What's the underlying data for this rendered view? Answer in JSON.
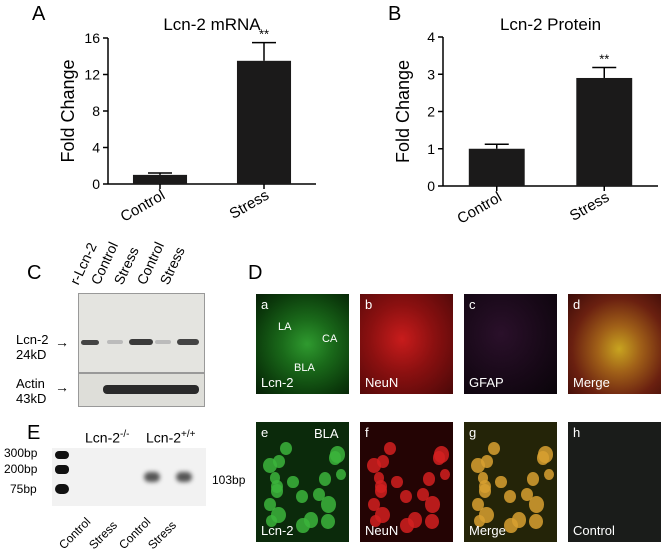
{
  "panels": {
    "A": "A",
    "B": "B",
    "C": "C",
    "D": "D",
    "E": "E"
  },
  "chart_data": [
    {
      "type": "bar",
      "title": "Lcn-2 mRNA",
      "categories": [
        "Control",
        "Stress"
      ],
      "values": [
        1.0,
        13.5
      ],
      "errors": [
        0.2,
        2.0
      ],
      "significance": [
        "",
        "**"
      ],
      "ylabel": "Fold Change",
      "ylim": [
        0,
        16
      ],
      "yticks": [
        "0",
        "4",
        "8",
        "12",
        "16"
      ],
      "bar_color": "#1b1a1a"
    },
    {
      "type": "bar",
      "title": "Lcn-2 Protein",
      "categories": [
        "Control",
        "Stress"
      ],
      "values": [
        1.0,
        2.9
      ],
      "errors": [
        0.12,
        0.28
      ],
      "significance": [
        "",
        "**"
      ],
      "ylabel": "Fold Change",
      "ylim": [
        0,
        4
      ],
      "yticks": [
        "0",
        "1",
        "2",
        "3",
        "4"
      ],
      "bar_color": "#1b1a1a"
    }
  ],
  "western": {
    "lanes": [
      "r-Lcn-2",
      "Control",
      "Stress",
      "Control",
      "Stress"
    ],
    "lcn2_label_line1": "Lcn-2",
    "lcn2_label_line2": "24kD",
    "actin_label_line1": "Actin",
    "actin_label_line2": "43kD"
  },
  "pcr": {
    "group1": "Lcn-2",
    "group1_sup": "-/-",
    "group2": "Lcn-2",
    "group2_sup": "+/+",
    "ladder": [
      "300bp",
      "200bp",
      "75bp"
    ],
    "product": "103bp",
    "lanes": [
      "Control",
      "Stress",
      "Control",
      "Stress"
    ]
  },
  "micrographs": [
    {
      "letter": "a",
      "name": "Lcn-2",
      "color": "#0a3d0a",
      "region_labels": [
        "LA",
        "CA",
        "BLA"
      ]
    },
    {
      "letter": "b",
      "name": "NeuN",
      "color": "#5a0a0a"
    },
    {
      "letter": "c",
      "name": "GFAP",
      "color": "#1a0a1a"
    },
    {
      "letter": "d",
      "name": "Merge",
      "color": "#5a3a0a"
    },
    {
      "letter": "e",
      "name": "Lcn-2",
      "color": "#0a300a",
      "region_labels": [
        "BLA"
      ]
    },
    {
      "letter": "f",
      "name": "NeuN",
      "color": "#2a0505"
    },
    {
      "letter": "g",
      "name": "Merge",
      "color": "#2a2a08"
    },
    {
      "letter": "h",
      "name": "Control",
      "color": "#181a18"
    }
  ]
}
